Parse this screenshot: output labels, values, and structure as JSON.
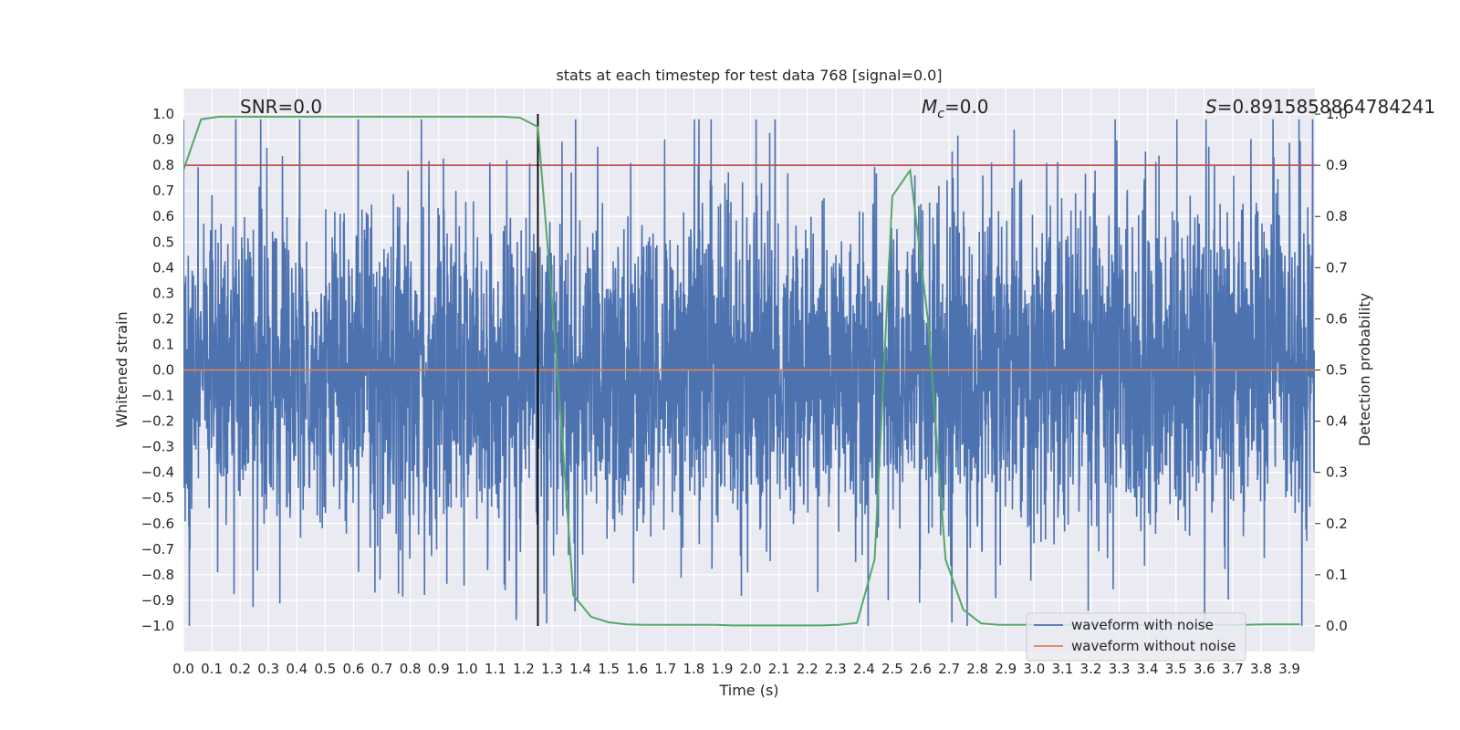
{
  "chart_data": {
    "type": "line",
    "title": "stats at each timestep for test data 768 [signal=0.0]",
    "xlabel": "Time (s)",
    "ylabel": "Whitened strain",
    "y2label": "Detection probability",
    "xlim": [
      0.0,
      3.99
    ],
    "ylim": [
      -1.1,
      1.1
    ],
    "y2lim": [
      -0.05,
      1.05
    ],
    "x_ticks": [
      "0.0",
      "0.1",
      "0.2",
      "0.3",
      "0.4",
      "0.5",
      "0.6",
      "0.7",
      "0.8",
      "0.9",
      "1.0",
      "1.1",
      "1.2",
      "1.3",
      "1.4",
      "1.5",
      "1.6",
      "1.7",
      "1.8",
      "1.9",
      "2.0",
      "2.1",
      "2.2",
      "2.3",
      "2.4",
      "2.5",
      "2.6",
      "2.7",
      "2.8",
      "2.9",
      "3.0",
      "3.1",
      "3.2",
      "3.3",
      "3.4",
      "3.5",
      "3.6",
      "3.7",
      "3.8",
      "3.9"
    ],
    "y_ticks": [
      "1.0",
      "0.9",
      "0.8",
      "0.7",
      "0.6",
      "0.5",
      "0.4",
      "0.3",
      "0.2",
      "0.1",
      "0.0",
      "−0.1",
      "−0.2",
      "−0.3",
      "−0.4",
      "−0.5",
      "−0.6",
      "−0.7",
      "−0.8",
      "−0.9",
      "−1.0"
    ],
    "y2_ticks": [
      "1.0",
      "0.9",
      "0.8",
      "0.7",
      "0.6",
      "0.5",
      "0.4",
      "0.3",
      "0.2",
      "0.1",
      "0.0"
    ],
    "annotations": {
      "snr": "SNR=0.0",
      "mc_symbol": "M",
      "mc_subscript": "c",
      "mc_value": "=0.0",
      "s_symbol": "S",
      "s_value": "=0.8915858864784241"
    },
    "series": [
      {
        "name": "waveform with noise",
        "color": "#4c72b0",
        "axis": "left",
        "kind": "noise",
        "min": -1.0,
        "max": 0.98,
        "typical_amplitude": 0.45
      },
      {
        "name": "waveform without noise",
        "color": "#dd8452",
        "axis": "left",
        "y": 0.0
      },
      {
        "name": "detection probability",
        "color": "#55a868",
        "axis": "right",
        "x": [
          0.0,
          0.0625,
          0.125,
          0.1875,
          0.25,
          0.3125,
          0.375,
          0.4375,
          0.5,
          0.5625,
          0.625,
          0.6875,
          0.75,
          0.8125,
          0.875,
          0.9375,
          1.0,
          1.0625,
          1.125,
          1.1875,
          1.25,
          1.3125,
          1.375,
          1.4375,
          1.5,
          1.5625,
          1.625,
          1.6875,
          1.75,
          1.8125,
          1.875,
          1.9375,
          2.0,
          2.0625,
          2.125,
          2.1875,
          2.25,
          2.3125,
          2.375,
          2.4375,
          2.5,
          2.5625,
          2.625,
          2.6875,
          2.75,
          2.8125,
          2.875,
          2.9375,
          3.0,
          3.0625,
          3.125,
          3.1875,
          3.25,
          3.3125,
          3.375,
          3.4375,
          3.5,
          3.5625,
          3.625,
          3.6875,
          3.75,
          3.8125,
          3.875,
          3.9375
        ],
        "y": [
          0.89,
          0.99,
          0.995,
          0.995,
          0.995,
          0.995,
          0.995,
          0.995,
          0.995,
          0.995,
          0.995,
          0.995,
          0.995,
          0.995,
          0.995,
          0.995,
          0.995,
          0.995,
          0.995,
          0.993,
          0.975,
          0.55,
          0.06,
          0.018,
          0.007,
          0.003,
          0.002,
          0.002,
          0.002,
          0.002,
          0.002,
          0.001,
          0.001,
          0.001,
          0.001,
          0.001,
          0.001,
          0.002,
          0.006,
          0.13,
          0.84,
          0.89,
          0.6,
          0.13,
          0.032,
          0.005,
          0.002,
          0.002,
          0.002,
          0.002,
          0.002,
          0.002,
          0.002,
          0.002,
          0.002,
          0.002,
          0.002,
          0.002,
          0.002,
          0.002,
          0.002,
          0.003,
          0.003,
          0.003
        ]
      }
    ],
    "threshold": {
      "axis": "right",
      "y": 0.9,
      "color": "#c44e52"
    },
    "marker_line": {
      "x": 1.25,
      "y_range": [
        -1.0,
        1.0
      ],
      "color": "#000000"
    },
    "legend": {
      "position": "bottom-right",
      "entries": [
        {
          "label": "waveform with noise",
          "color": "#4c72b0"
        },
        {
          "label": "waveform without noise",
          "color": "#dd8452"
        }
      ]
    },
    "grid": true
  }
}
